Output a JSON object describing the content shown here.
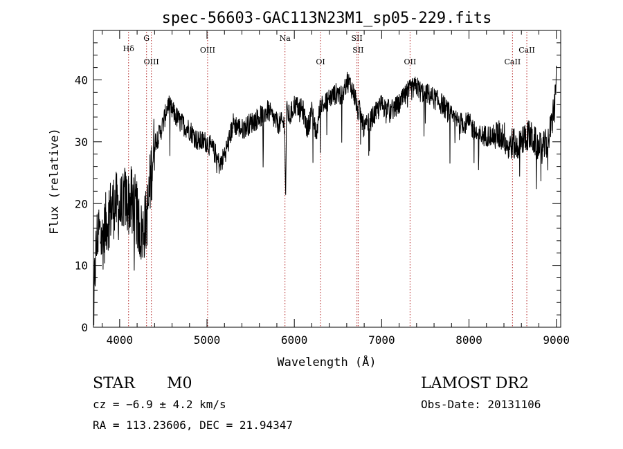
{
  "chart_data": {
    "type": "line",
    "title": "spec-56603-GAC113N23M1_sp05-229.fits",
    "xlabel": "Wavelength (Å)",
    "ylabel": "Flux (relative)",
    "xlim": [
      3700,
      9050
    ],
    "ylim": [
      0,
      48
    ],
    "xticks": [
      4000,
      5000,
      6000,
      7000,
      8000,
      9000
    ],
    "yticks": [
      0,
      10,
      20,
      30,
      40
    ],
    "xtick_labels": [
      "4000",
      "5000",
      "6000",
      "7000",
      "8000",
      "9000"
    ],
    "ytick_labels": [
      "0",
      "10",
      "20",
      "30",
      "40"
    ],
    "grid": false,
    "series": [
      {
        "color": "#000000",
        "anchors_x": [
          3700,
          3720,
          3750,
          3800,
          3850,
          3900,
          3950,
          4000,
          4050,
          4100,
          4150,
          4200,
          4250,
          4300,
          4330,
          4360,
          4400,
          4450,
          4500,
          4550,
          4600,
          4700,
          4800,
          4900,
          5000,
          5050,
          5100,
          5150,
          5200,
          5250,
          5300,
          5400,
          5500,
          5600,
          5700,
          5800,
          5850,
          5890,
          5900,
          5910,
          5950,
          6000,
          6100,
          6150,
          6200,
          6250,
          6300,
          6350,
          6400,
          6500,
          6550,
          6600,
          6650,
          6700,
          6720,
          6750,
          6800,
          6850,
          6900,
          6950,
          7000,
          7100,
          7200,
          7300,
          7400,
          7450,
          7500,
          7600,
          7700,
          7800,
          7900,
          8000,
          8100,
          8200,
          8300,
          8400,
          8450,
          8500,
          8540,
          8600,
          8650,
          8700,
          8750,
          8800,
          8850,
          8900,
          8950,
          9000
        ],
        "anchors_y": [
          2,
          10,
          16,
          14,
          17,
          19,
          20,
          19,
          21,
          20,
          21,
          18,
          15,
          17,
          20,
          25,
          30,
          31,
          33,
          36,
          35,
          33,
          32,
          30,
          30,
          29,
          28,
          26,
          28,
          30,
          33,
          32,
          33,
          34,
          35,
          33,
          33,
          33,
          20,
          35,
          34,
          36,
          35,
          32,
          35,
          31,
          36,
          36,
          37,
          38,
          37,
          40,
          39,
          37,
          35,
          35,
          32,
          33,
          34,
          35,
          36,
          35,
          36,
          38,
          39,
          38,
          38,
          37,
          36,
          34,
          33,
          33,
          31,
          31,
          31,
          31,
          29,
          30,
          29,
          30,
          31,
          31,
          30,
          29,
          29,
          30,
          33,
          40
        ]
      }
    ],
    "lines": [
      {
        "x": 4102,
        "label": "Hδ"
      },
      {
        "x": 4308,
        "label": "G"
      },
      {
        "x": 4363,
        "label": "OIII"
      },
      {
        "x": 5007,
        "label": "OIII"
      },
      {
        "x": 5893,
        "label": "Na"
      },
      {
        "x": 6300,
        "label": "OI"
      },
      {
        "x": 6717,
        "label": "SII"
      },
      {
        "x": 6731,
        "label": "SII"
      },
      {
        "x": 7325,
        "label": "OII"
      },
      {
        "x": 8498,
        "label": "CaII"
      },
      {
        "x": 8662,
        "label": "CaII"
      }
    ]
  },
  "info": {
    "class": "STAR",
    "subclass": "M0",
    "survey": "LAMOST DR2",
    "cz": "cz = −6.9 ± 4.2 km/s",
    "obs_date": "Obs-Date: 20131106",
    "radec": "RA = 113.23606, DEC =  21.94347"
  },
  "colors": {
    "spectrum": "#000000",
    "line_marker": "#b22222",
    "axes": "#000000"
  }
}
